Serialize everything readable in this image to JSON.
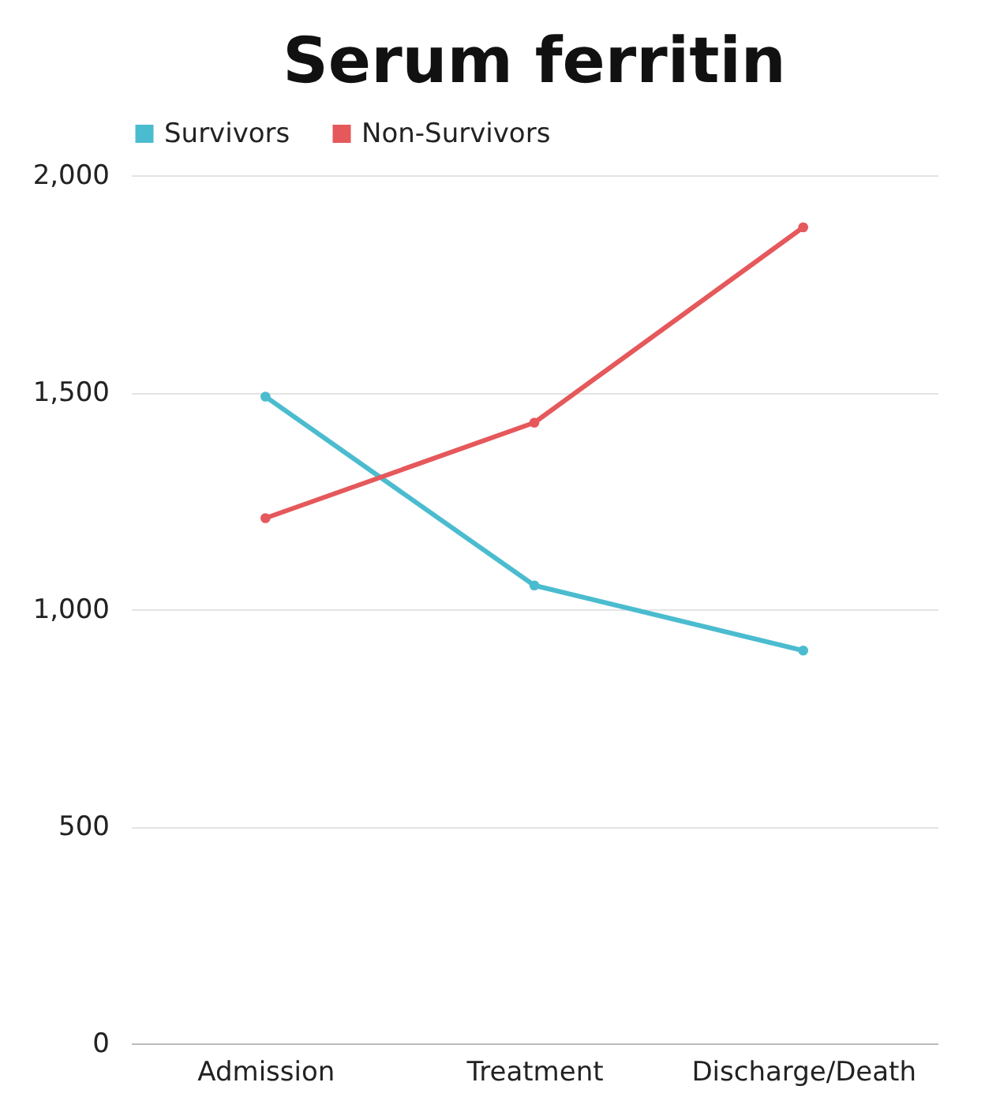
{
  "chart_data": {
    "type": "line",
    "title": "Serum ferritin",
    "categories": [
      "Admission",
      "Treatment",
      "Discharge/Death"
    ],
    "series": [
      {
        "name": "Survivors",
        "color": "#4bbccf",
        "values": [
          1490,
          1055,
          905
        ]
      },
      {
        "name": "Non-Survivors",
        "color": "#e5585b",
        "values": [
          1210,
          1430,
          1880
        ]
      }
    ],
    "ylim": [
      0,
      2000
    ],
    "yticks": [
      0,
      500,
      {
        "value": 1000,
        "label": "1,000"
      },
      {
        "value": 1500,
        "label": "1,500"
      },
      {
        "value": 2000,
        "label": "2,000"
      }
    ],
    "grid": "y",
    "legend": "top",
    "marker": "circle",
    "line_style": "solid"
  }
}
